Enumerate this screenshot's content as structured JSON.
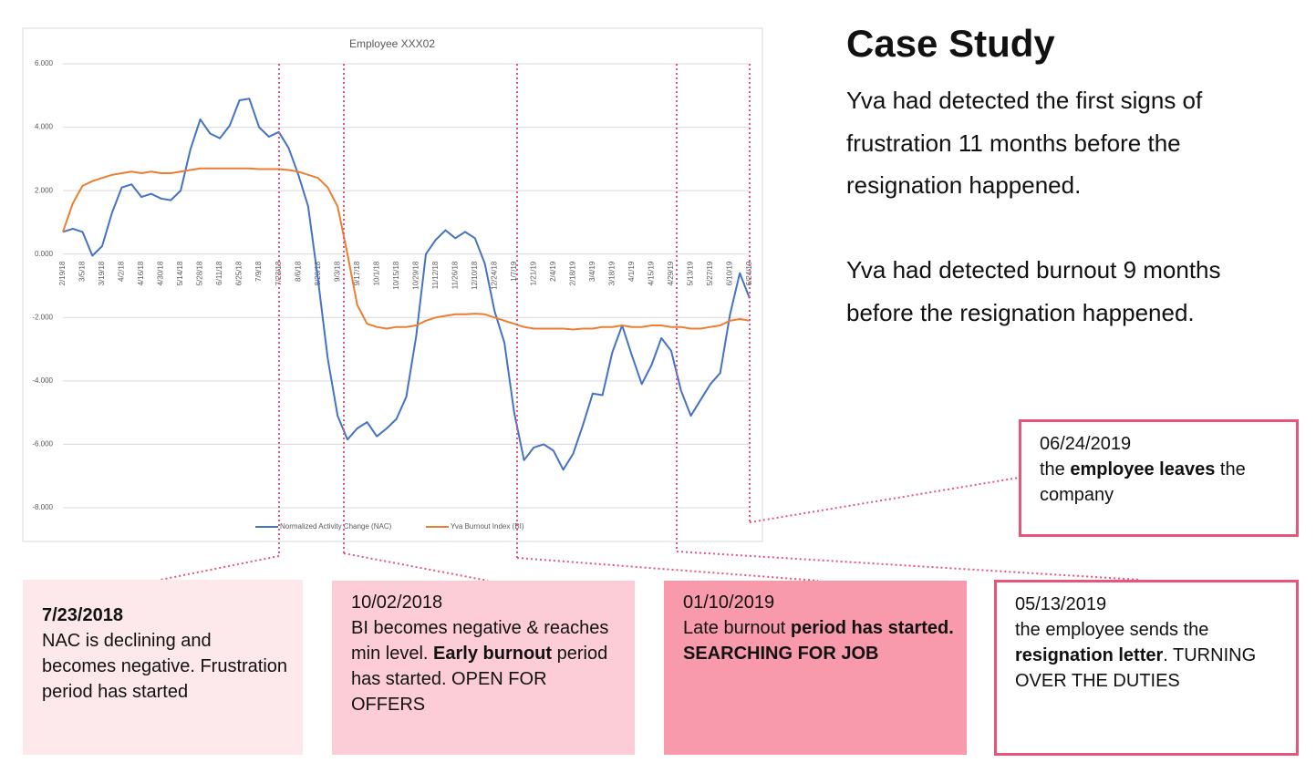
{
  "chart_data": {
    "type": "line",
    "title": "Employee XXX02",
    "categories": [
      "2/19/18",
      null,
      "3/5/18",
      null,
      "3/19/18",
      null,
      "4/2/18",
      null,
      "4/16/18",
      null,
      "4/30/18",
      null,
      "5/14/18",
      null,
      "5/28/18",
      null,
      "6/11/18",
      null,
      "6/25/18",
      null,
      "7/9/18",
      null,
      "7/23/18",
      null,
      "8/6/18",
      null,
      "8/20/18",
      null,
      "9/3/18",
      null,
      "9/17/18",
      null,
      "10/1/18",
      null,
      "10/15/18",
      null,
      "10/29/18",
      null,
      "11/12/18",
      null,
      "11/26/18",
      null,
      "12/10/18",
      null,
      "12/24/18",
      null,
      "1/7/19",
      null,
      "1/21/19",
      null,
      "2/4/19",
      null,
      "2/18/19",
      null,
      "3/4/19",
      null,
      "3/18/19",
      null,
      "4/1/19",
      null,
      "4/15/19",
      null,
      "4/29/19",
      null,
      "5/13/19",
      null,
      "5/27/19",
      null,
      "6/10/19",
      null,
      "6/24/19"
    ],
    "series": [
      {
        "name": "Normalized Activity Change (NAC)",
        "color": "#4472c4",
        "values": [
          0.7,
          0.8,
          0.7,
          -0.05,
          0.25,
          1.3,
          2.1,
          2.2,
          1.8,
          1.9,
          1.75,
          1.7,
          2.0,
          3.3,
          4.25,
          3.8,
          3.65,
          4.05,
          4.85,
          4.9,
          4.0,
          3.7,
          3.85,
          3.35,
          2.5,
          1.5,
          -0.8,
          -3.3,
          -5.1,
          -5.85,
          -5.5,
          -5.3,
          -5.75,
          -5.5,
          -5.2,
          -4.5,
          -2.6,
          0,
          0.45,
          0.75,
          0.5,
          0.7,
          0.5,
          -0.3,
          -1.8,
          -2.8,
          -5.0,
          -6.5,
          -6.1,
          -6.0,
          -6.2,
          -6.8,
          -6.3,
          -5.4,
          -4.4,
          -4.45,
          -3.1,
          -2.25,
          -3.2,
          -4.1,
          -3.5,
          -2.65,
          -3.05,
          -4.3,
          -5.1,
          -4.6,
          -4.1,
          -3.75,
          -1.9,
          -0.6,
          -1.4
        ]
      },
      {
        "name": "Yva Burnout Index (BI)",
        "color": "#ed7d31",
        "values": [
          0.7,
          1.6,
          2.15,
          2.3,
          2.4,
          2.5,
          2.55,
          2.6,
          2.55,
          2.6,
          2.55,
          2.55,
          2.6,
          2.65,
          2.7,
          2.7,
          2.7,
          2.7,
          2.7,
          2.7,
          2.68,
          2.68,
          2.68,
          2.65,
          2.6,
          2.5,
          2.4,
          2.1,
          1.5,
          0,
          -1.6,
          -2.2,
          -2.3,
          -2.35,
          -2.3,
          -2.3,
          -2.25,
          -2.1,
          -2.0,
          -1.95,
          -1.9,
          -1.9,
          -1.88,
          -1.9,
          -2.0,
          -2.1,
          -2.2,
          -2.3,
          -2.35,
          -2.35,
          -2.35,
          -2.35,
          -2.38,
          -2.35,
          -2.35,
          -2.3,
          -2.3,
          -2.25,
          -2.3,
          -2.3,
          -2.25,
          -2.25,
          -2.3,
          -2.3,
          -2.35,
          -2.35,
          -2.3,
          -2.25,
          -2.1,
          -2.05,
          -2.1
        ]
      }
    ],
    "ylim": [
      -8,
      6
    ],
    "yticks": [
      {
        "value": -8,
        "label": "-8.000"
      },
      {
        "value": -6,
        "label": "-6.000"
      },
      {
        "value": -4,
        "label": "-4.000"
      },
      {
        "value": -2,
        "label": "-2.000"
      },
      {
        "value": 0,
        "label": "0.000"
      },
      {
        "value": 2,
        "label": "2.000"
      },
      {
        "value": 4,
        "label": "4.000"
      },
      {
        "value": 6,
        "label": "6.000"
      }
    ],
    "grid": true,
    "legend": "bottom"
  },
  "case_study": {
    "title": "Case Study",
    "paragraphs": [
      "Yva had detected the first signs of frustration 11 months before the resignation happened.",
      "Yva had detected burnout 9 months before the resignation happened."
    ]
  },
  "callouts": [
    {
      "date": "7/23/2018",
      "parts": [
        "NAC is declining and becomes negative. Frustration period has started"
      ]
    },
    {
      "date": "10/02/2018",
      "parts": [
        "BI becomes negative & reaches min level. ",
        "Early burnout",
        " period has started. OPEN FOR OFFERS"
      ]
    },
    {
      "date": "01/10/2019",
      "parts": [
        "Late burnout",
        " period has started. SEARCHING FOR JOB"
      ]
    },
    {
      "date": "05/13/2019",
      "parts": [
        "the employee sends the ",
        "resignation letter",
        ". TURNING OVER THE DUTIES"
      ]
    },
    {
      "date": "06/24/2019",
      "parts": [
        "the ",
        "employee leaves",
        " the company"
      ]
    }
  ]
}
